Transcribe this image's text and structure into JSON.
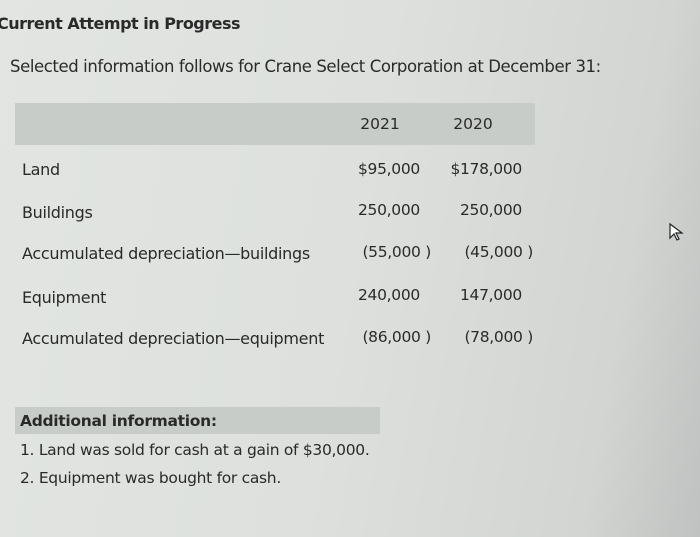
{
  "header": {
    "title": "Current Attempt in Progress"
  },
  "question": {
    "intro": "Selected information follows for Crane Select Corporation at December 31:"
  },
  "table": {
    "columns": [
      "2021",
      "2020"
    ],
    "rows": [
      {
        "label": "Land",
        "v2021": "$95,000",
        "v2020": "$178,000"
      },
      {
        "label": "Buildings",
        "v2021": "250,000",
        "v2020": "250,000"
      },
      {
        "label": "Accumulated depreciation—buildings",
        "v2021": "(55,000 )",
        "v2020": "(45,000 )"
      },
      {
        "label": "Equipment",
        "v2021": "240,000",
        "v2020": "147,000"
      },
      {
        "label": "Accumulated depreciation—equipment",
        "v2021": "(86,000 )",
        "v2020": "(78,000 )"
      }
    ]
  },
  "additional": {
    "heading": "Additional information:",
    "items": [
      "1.  Land was sold for cash at a gain of $30,000.",
      "2.  Equipment was bought for cash."
    ]
  },
  "icons": {
    "cursor": "mouse-pointer-icon"
  }
}
